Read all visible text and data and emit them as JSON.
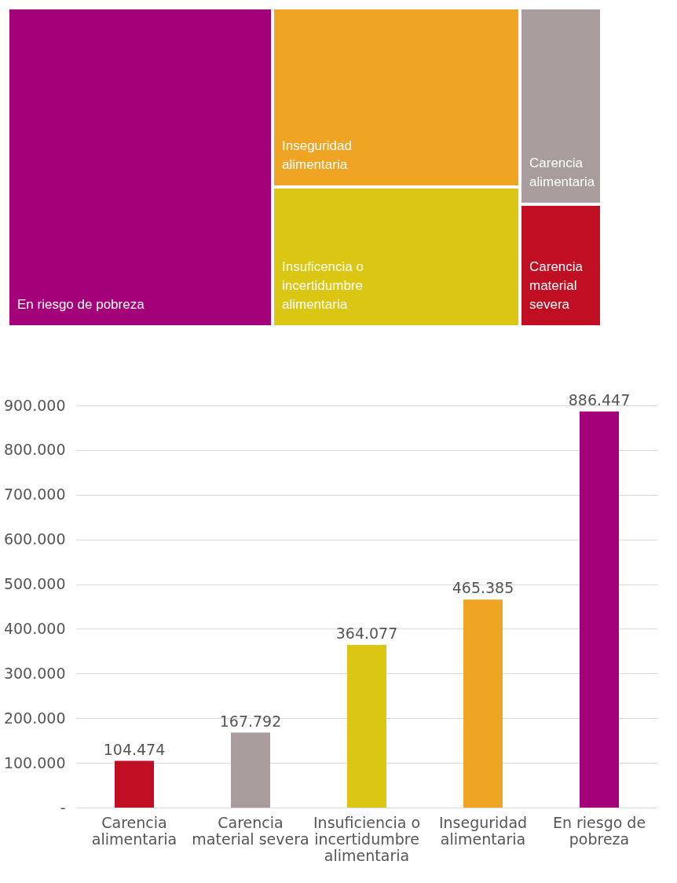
{
  "chart_data": [
    {
      "type": "other",
      "categories": [
        "En riesgo de pobreza",
        "Insuficencia o incertidumbre alimentaria",
        "Carencia alimentaria",
        "Inseguridad alimentaria",
        "Carencia material severa"
      ],
      "colors": [
        "#a3007a",
        "#dbc613",
        "#a89c9c",
        "#efa523",
        "#c00f23"
      ]
    },
    {
      "type": "bar",
      "categories": [
        "Carencia alimentaria",
        "Carencia material severa",
        "Insuficiencia o incertidumbre alimentaria",
        "Inseguridad alimentaria",
        "En riesgo de pobreza"
      ],
      "values": [
        104474,
        167792,
        364077,
        465385,
        886447
      ],
      "colors": [
        "#c00f23",
        "#a89c9c",
        "#dbc613",
        "#efa523",
        "#a3007a"
      ],
      "value_labels": [
        "104.474",
        "167.792",
        "364.077",
        "465.385",
        "886.447"
      ],
      "ylim": [
        0,
        900000
      ],
      "yticks": [
        {
          "value": 0,
          "label": "-"
        },
        {
          "value": 100000,
          "label": "100.000"
        },
        {
          "value": 200000,
          "label": "200.000"
        },
        {
          "value": 300000,
          "label": "300.000"
        },
        {
          "value": 400000,
          "label": "400.000"
        },
        {
          "value": 500000,
          "label": "500.000"
        },
        {
          "value": 600000,
          "label": "600.000"
        },
        {
          "value": 700000,
          "label": "700.000"
        },
        {
          "value": 800000,
          "label": "800.000"
        },
        {
          "value": 900000,
          "label": "900.000"
        }
      ],
      "grid": "y"
    }
  ]
}
